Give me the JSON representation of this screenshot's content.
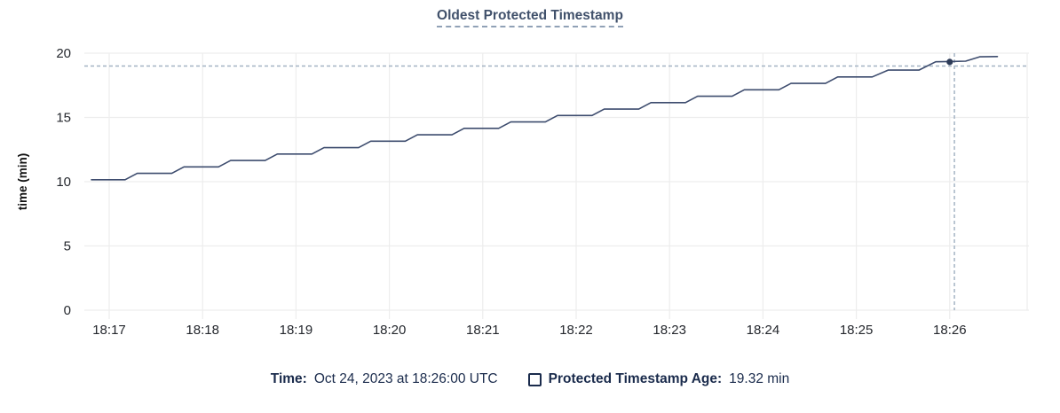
{
  "chart": {
    "title": "Oldest Protected Timestamp"
  },
  "legend": {
    "time_label": "Time:",
    "time_value": "Oct 24, 2023 at 18:26:00 UTC",
    "series_label": "Protected Timestamp Age:",
    "series_value": "19.32 min"
  },
  "colors": {
    "title": "#41516b",
    "title_dash": "#90a1b6",
    "legend": "#1a2b4c",
    "line": "#3d4c6e",
    "point": "#2d3b58",
    "guideline": "#a4b3c4",
    "grid": "#ededed",
    "tick_text": "#24272d",
    "axis_title_text": "#111111"
  },
  "chart_data": {
    "type": "line",
    "title": "Oldest Protected Timestamp",
    "xlabel": "",
    "ylabel": "time (min)",
    "ylim": [
      0,
      20
    ],
    "yticks": [
      0,
      5,
      10,
      15,
      20
    ],
    "xticks": [
      "18:17",
      "18:18",
      "18:19",
      "18:20",
      "18:21",
      "18:22",
      "18:23",
      "18:24",
      "18:25",
      "18:26"
    ],
    "x_unit": "minutes after 18:17",
    "grid": true,
    "legend_position": "bottom",
    "series": [
      {
        "name": "Protected Timestamp Age",
        "unit": "min",
        "points": [
          [
            -0.19,
            10.15
          ],
          [
            0.17,
            10.15
          ],
          [
            0.3,
            10.65
          ],
          [
            0.67,
            10.65
          ],
          [
            0.8,
            11.15
          ],
          [
            1.17,
            11.15
          ],
          [
            1.3,
            11.65
          ],
          [
            1.67,
            11.65
          ],
          [
            1.8,
            12.15
          ],
          [
            2.17,
            12.15
          ],
          [
            2.3,
            12.65
          ],
          [
            2.67,
            12.65
          ],
          [
            2.8,
            13.15
          ],
          [
            3.17,
            13.15
          ],
          [
            3.3,
            13.65
          ],
          [
            3.67,
            13.65
          ],
          [
            3.8,
            14.15
          ],
          [
            4.17,
            14.15
          ],
          [
            4.3,
            14.65
          ],
          [
            4.67,
            14.65
          ],
          [
            4.8,
            15.15
          ],
          [
            5.17,
            15.15
          ],
          [
            5.3,
            15.65
          ],
          [
            5.67,
            15.65
          ],
          [
            5.8,
            16.15
          ],
          [
            6.17,
            16.15
          ],
          [
            6.3,
            16.65
          ],
          [
            6.67,
            16.65
          ],
          [
            6.8,
            17.15
          ],
          [
            7.17,
            17.15
          ],
          [
            7.3,
            17.65
          ],
          [
            7.67,
            17.65
          ],
          [
            7.8,
            18.15
          ],
          [
            8.17,
            18.15
          ],
          [
            8.34,
            18.68
          ],
          [
            8.67,
            18.68
          ],
          [
            8.85,
            19.33
          ],
          [
            9.0,
            19.35
          ],
          [
            9.17,
            19.38
          ],
          [
            9.32,
            19.72
          ],
          [
            9.51,
            19.74
          ]
        ]
      }
    ],
    "hover": {
      "t": 9.0,
      "x_label": "18:26",
      "time": "Oct 24, 2023 at 18:26:00 UTC",
      "value": 19.32,
      "unit": "min",
      "guideline_t": 9.05,
      "guideline_value": 19.0
    }
  }
}
